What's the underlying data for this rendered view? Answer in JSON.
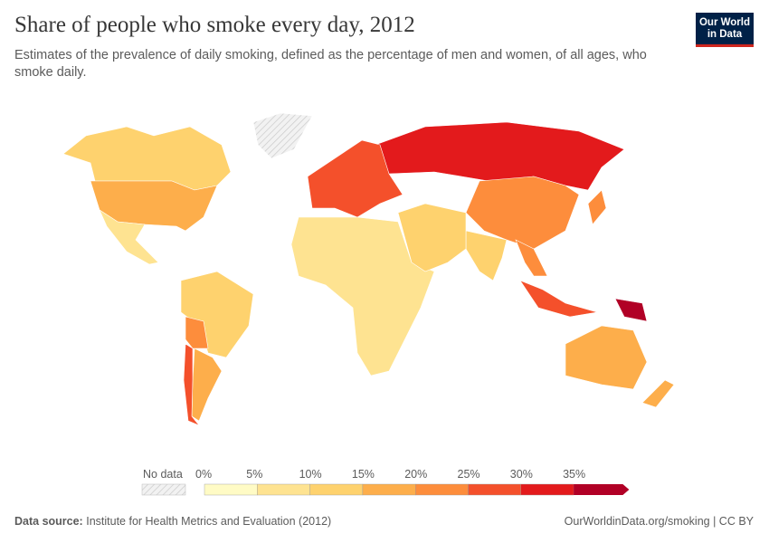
{
  "title": "Share of people who smoke every day, 2012",
  "subtitle": "Estimates of the prevalence of daily smoking, defined as the percentage of men and women, of all ages, who smoke daily.",
  "logo": {
    "line1": "Our World",
    "line2": "in Data"
  },
  "legend": {
    "no_data_label": "No data",
    "ticks": [
      "0%",
      "5%",
      "10%",
      "15%",
      "20%",
      "25%",
      "30%",
      "35%"
    ],
    "bin_colors": [
      "#fffbc5",
      "#fee391",
      "#fed26e",
      "#fdae4b",
      "#fd8d3c",
      "#f4502b",
      "#e31a1c",
      "#b10026"
    ],
    "no_data_color": "#e8e8e8"
  },
  "map_regions": [
    {
      "name": "Canada",
      "bin": "10-15%"
    },
    {
      "name": "United States",
      "bin": "15-20%"
    },
    {
      "name": "Mexico",
      "bin": "5-10%"
    },
    {
      "name": "Greenland",
      "bin": "No data"
    },
    {
      "name": "Brazil",
      "bin": "10-15%"
    },
    {
      "name": "Argentina",
      "bin": "15-20%"
    },
    {
      "name": "Chile",
      "bin": "25-30%"
    },
    {
      "name": "Bolivia",
      "bin": "20-25%"
    },
    {
      "name": "Russia",
      "bin": "30-35%"
    },
    {
      "name": "Europe",
      "bin": "25-30%"
    },
    {
      "name": "China",
      "bin": "20-25%"
    },
    {
      "name": "India",
      "bin": "10-15%"
    },
    {
      "name": "Africa",
      "bin": "5-10%"
    },
    {
      "name": "Middle East",
      "bin": "10-15%"
    },
    {
      "name": "Australia",
      "bin": "15-20%"
    },
    {
      "name": "Indonesia",
      "bin": "25-30%"
    },
    {
      "name": "Papua New Guinea",
      "bin": "35%+"
    },
    {
      "name": "Japan",
      "bin": "20-25%"
    },
    {
      "name": "Southeast Asia",
      "bin": "20-25%"
    },
    {
      "name": "New Zealand",
      "bin": "15-20%"
    }
  ],
  "footer": {
    "source_label": "Data source:",
    "source_text": "Institute for Health Metrics and Evaluation (2012)",
    "url": "OurWorldinData.org/smoking | CC BY"
  }
}
